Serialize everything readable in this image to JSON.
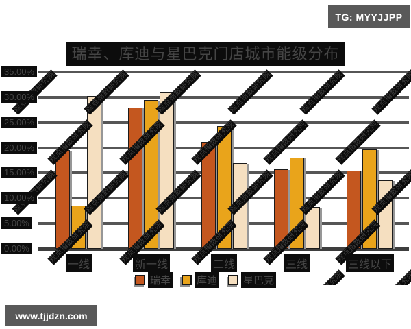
{
  "badge": {
    "text": "TG: MYYJJPP"
  },
  "site": {
    "text": "www.tjjdzn.com"
  },
  "watermark": {
    "text": "观点指数研究院"
  },
  "chart_data": {
    "type": "bar",
    "title": "瑞幸、库迪与星巴克门店城市能级分布",
    "categories": [
      "一线",
      "新一线",
      "二线",
      "三线",
      "三线以下"
    ],
    "series": [
      {
        "key": "luckin",
        "name": "瑞幸",
        "color": "#c4571f",
        "values": [
          19.6,
          28.0,
          21.1,
          15.8,
          15.5
        ]
      },
      {
        "key": "cotti",
        "name": "库迪",
        "color": "#e9a41b",
        "values": [
          8.6,
          29.4,
          24.3,
          18.0,
          19.7
        ]
      },
      {
        "key": "starbucks",
        "name": "星巴克",
        "color": "#f5dfc0",
        "values": [
          30.2,
          31.0,
          16.9,
          8.3,
          13.6
        ]
      }
    ],
    "yticks": [
      "35.00%",
      "30.00%",
      "25.00%",
      "20.00%",
      "15.00%",
      "10.00%",
      "5.00%",
      "0.00%"
    ],
    "ylim": [
      0,
      35
    ],
    "unit": "%",
    "grid": true,
    "legend_position": "bottom"
  }
}
